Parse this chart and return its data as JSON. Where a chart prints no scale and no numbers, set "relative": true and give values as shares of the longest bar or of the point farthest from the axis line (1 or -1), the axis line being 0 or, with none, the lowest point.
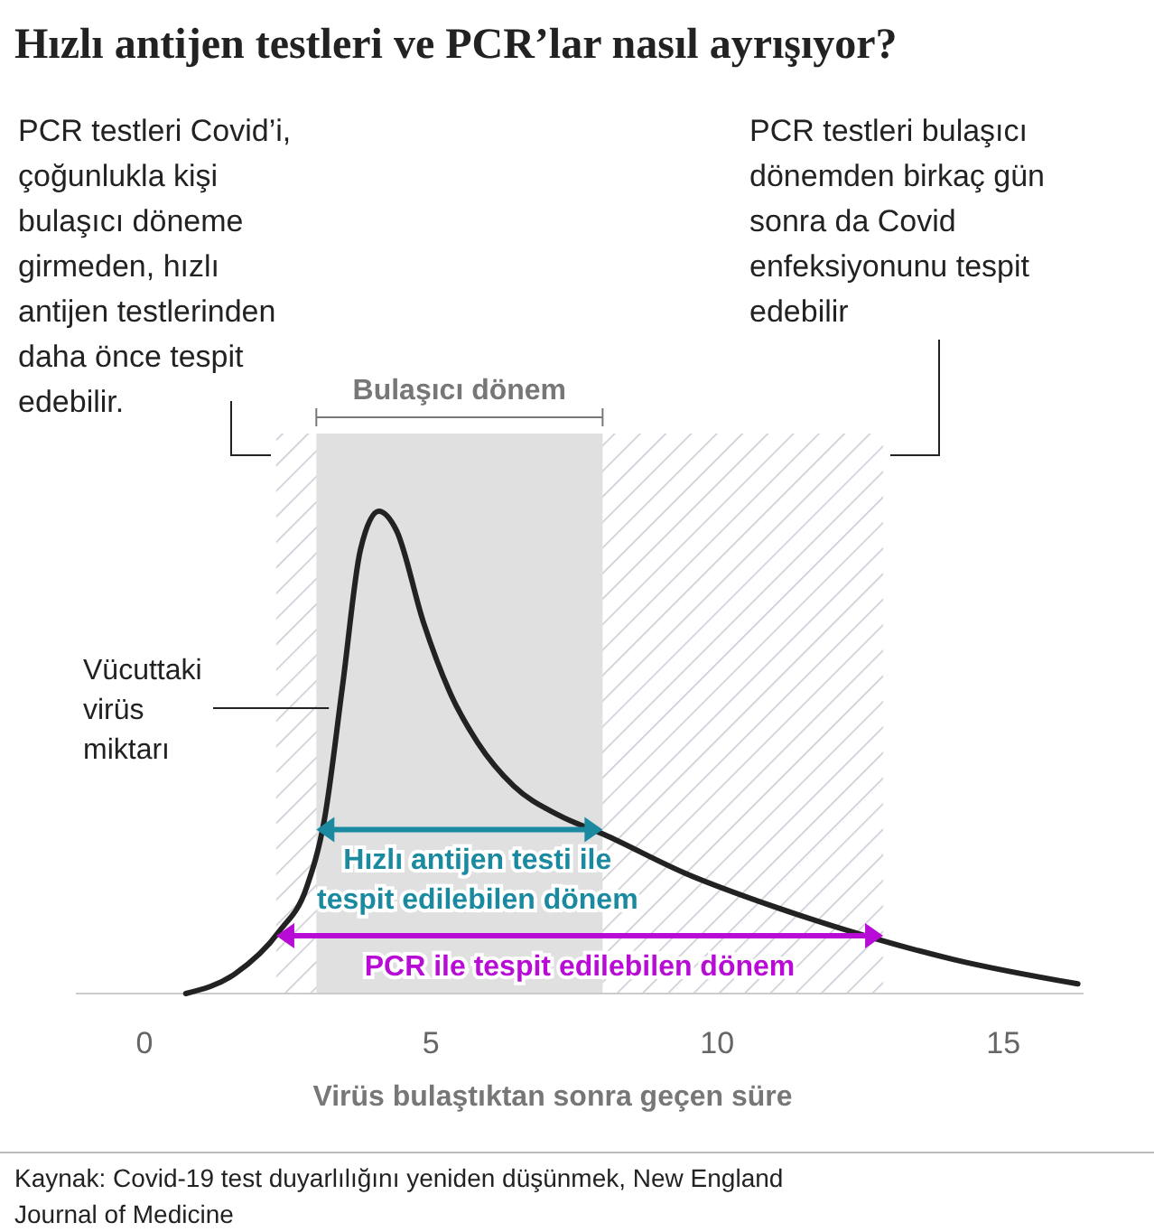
{
  "chart_data": {
    "type": "line",
    "title": "Hızlı antijen testleri ve PCR’lar nasıl ayrışıyor?",
    "xlabel": "Virüs bulaştıktan sonra geçen süre",
    "relative": true,
    "legend": "left",
    "marker": "none",
    "line_style": "solid",
    "xlim": [
      -1.2,
      16.4
    ],
    "xticks": [
      0,
      5,
      10,
      15
    ],
    "series": [
      {
        "name": "Vücuttaki virüs miktarı",
        "color": "#222222",
        "x": [
          0.72,
          1.57,
          2.36,
          2.83,
          3.14,
          3.46,
          3.77,
          4.09,
          4.4,
          4.87,
          5.35,
          5.82,
          6.45,
          7.23,
          8.02,
          9.43,
          11.0,
          12.58,
          14.15,
          16.3
        ],
        "values": [
          0,
          0.04,
          0.13,
          0.22,
          0.36,
          0.64,
          0.92,
          1,
          0.96,
          0.77,
          0.62,
          0.52,
          0.43,
          0.37,
          0.33,
          0.25,
          0.18,
          0.12,
          0.07,
          0.02
        ]
      }
    ],
    "bands": [
      {
        "axis": "x",
        "from": 2.3,
        "to": 12.9,
        "label": "PCR ile tespit edilebilen dönem",
        "color": "#b80bd6"
      },
      {
        "axis": "x",
        "from": 3,
        "to": 8,
        "label": "Bulaşıcı dönem",
        "color": "#e0e0e0"
      }
    ],
    "annotations": [
      "PCR testleri Covid’i, çoğunlukla kişi bulaşıcı döneme girmeden, hızlı antijen testlerinden daha önce tespit edebilir.",
      "PCR testleri bulaşıcı dönemden birkaç gün sonra da Covid enfeksiyonunu tespit edebilir",
      "Kaynak: Covid-19 test duyarlılığını yeniden düşünmek, New England Journal of Medicine",
      "Hızlı antijen testi ile tespit edilebilen dönem"
    ]
  }
}
